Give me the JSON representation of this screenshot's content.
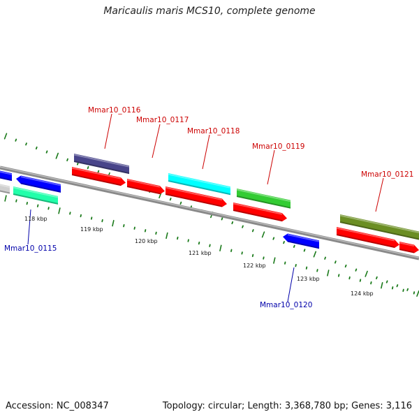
{
  "title": "Maricaulis maris MCS10, complete genome",
  "accession": "Accession: NC_008347",
  "topology": "Topology: circular; Length: 3,368,780 bp; Genes: 3,116",
  "colors": {
    "backbone": "#8a8a8a",
    "tick": "#1a7a1a",
    "forward_label": "#cc0000",
    "reverse_label": "#0000aa",
    "cds_red": "#ff0000",
    "cds_blue": "#0000ff",
    "cds_purple": "#48448a",
    "cds_cyan": "#00ffff",
    "cds_green": "#33cc33",
    "cds_olive": "#6b8e23",
    "cds_aqua": "#22ffaa",
    "cds_grey": "#cfcfcf"
  },
  "scale_labels": [
    "118 kbp",
    "119 kbp",
    "120 kbp",
    "121 kbp",
    "122 kbp",
    "123 kbp",
    "124 kbp"
  ],
  "gene_labels": {
    "top": [
      "Mmar10_0116",
      "Mmar10_0117",
      "Mmar10_0118",
      "Mmar10_0119",
      "Mmar10_0121"
    ],
    "bottom": [
      "Mmar10_0115",
      "Mmar10_0120"
    ]
  }
}
